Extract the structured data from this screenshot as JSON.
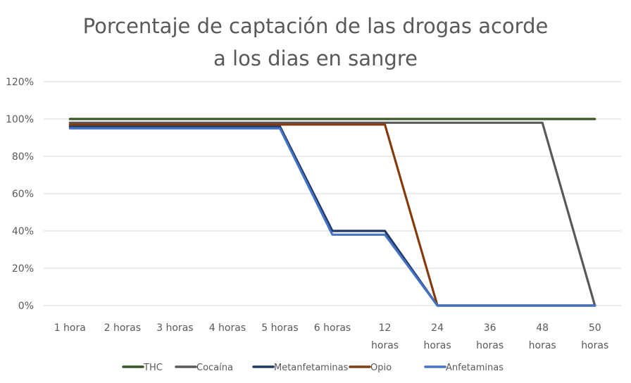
{
  "chart_data": {
    "type": "line",
    "title_lines": [
      "Porcentaje de captación de las drogas acorde",
      "a los dias en sangre"
    ],
    "categories": [
      "1 hora",
      "2 horas",
      "3 horas",
      "4 horas",
      "5 horas",
      "6 horas",
      "12 horas",
      "24 horas",
      "36 horas",
      "48 horas",
      "50 horas"
    ],
    "yticks": [
      "0%",
      "20%",
      "40%",
      "60%",
      "80%",
      "100%",
      "120%"
    ],
    "ylim": [
      0,
      120
    ],
    "grid": true,
    "legend_position": "bottom",
    "series": [
      {
        "name": "THC",
        "color": "#375623",
        "values": [
          100,
          100,
          100,
          100,
          100,
          100,
          100,
          100,
          100,
          100,
          100
        ]
      },
      {
        "name": "Cocaína",
        "color": "#595959",
        "values": [
          98,
          98,
          98,
          98,
          98,
          98,
          98,
          98,
          98,
          98,
          0
        ]
      },
      {
        "name": "Metanfetaminas",
        "color": "#203864",
        "values": [
          96,
          96,
          96,
          96,
          96,
          40,
          40,
          0,
          0,
          0,
          0
        ]
      },
      {
        "name": "Opio",
        "color": "#843C0C",
        "values": [
          97,
          97,
          97,
          97,
          97,
          97,
          97,
          0,
          0,
          0,
          0
        ]
      },
      {
        "name": "Anfetaminas",
        "color": "#4472C4",
        "values": [
          95,
          95,
          95,
          95,
          95,
          38,
          38,
          0,
          0,
          0,
          0
        ]
      }
    ]
  }
}
